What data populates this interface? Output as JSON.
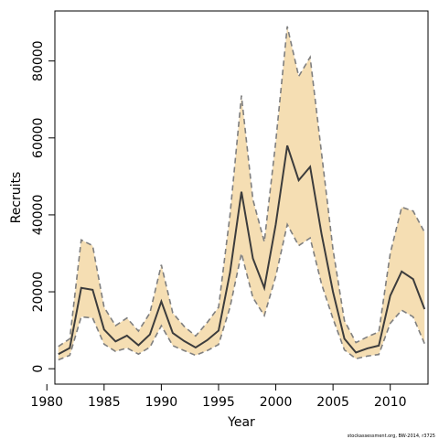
{
  "chart_data": {
    "type": "area",
    "xlabel": "Year",
    "ylabel": "Recruits",
    "xlim": [
      1980.7,
      2013.3
    ],
    "ylim": [
      -4000,
      93000
    ],
    "x_ticks": [
      1980,
      1985,
      1990,
      1995,
      2000,
      2005,
      2010
    ],
    "y_ticks": [
      0,
      20000,
      40000,
      60000,
      80000
    ],
    "grid": false,
    "legend": "none",
    "x": [
      1981,
      1982,
      1983,
      1984,
      1985,
      1986,
      1987,
      1988,
      1989,
      1990,
      1991,
      1992,
      1993,
      1994,
      1995,
      1996,
      1997,
      1998,
      1999,
      2000,
      2001,
      2002,
      2003,
      2004,
      2005,
      2006,
      2007,
      2008,
      2009,
      2010,
      2011,
      2012,
      2013
    ],
    "series": [
      {
        "role": "estimate",
        "values": [
          3800,
          5400,
          21000,
          20500,
          10200,
          7100,
          8600,
          6100,
          8900,
          17500,
          9300,
          7200,
          5500,
          7400,
          9900,
          25000,
          46000,
          28700,
          21000,
          37500,
          58000,
          49000,
          52500,
          35000,
          20000,
          7800,
          4200,
          5300,
          6000,
          19000,
          25300,
          23300,
          15500
        ]
      },
      {
        "role": "upper",
        "values": [
          5800,
          7800,
          33500,
          32000,
          16000,
          11200,
          13200,
          9800,
          14500,
          27000,
          14500,
          11000,
          8500,
          12000,
          16000,
          40000,
          71000,
          44000,
          33000,
          59000,
          89000,
          76000,
          81000,
          56000,
          31000,
          12500,
          6800,
          8300,
          9600,
          30000,
          42000,
          41000,
          35500
        ]
      },
      {
        "role": "lower",
        "values": [
          2300,
          3500,
          13500,
          13200,
          6400,
          4500,
          5400,
          3800,
          5600,
          11200,
          6000,
          4700,
          3500,
          4700,
          6300,
          16000,
          30000,
          18500,
          13800,
          24000,
          37500,
          32000,
          34000,
          22000,
          13000,
          4900,
          2600,
          3300,
          3700,
          11800,
          15200,
          13500,
          6500
        ]
      }
    ],
    "colors": {
      "band": "#f5deb3",
      "band_edge": "#7f7f7f",
      "line": "#3c3c3c"
    },
    "footnote": "stockassessment.org, BW-2014, r3725"
  }
}
